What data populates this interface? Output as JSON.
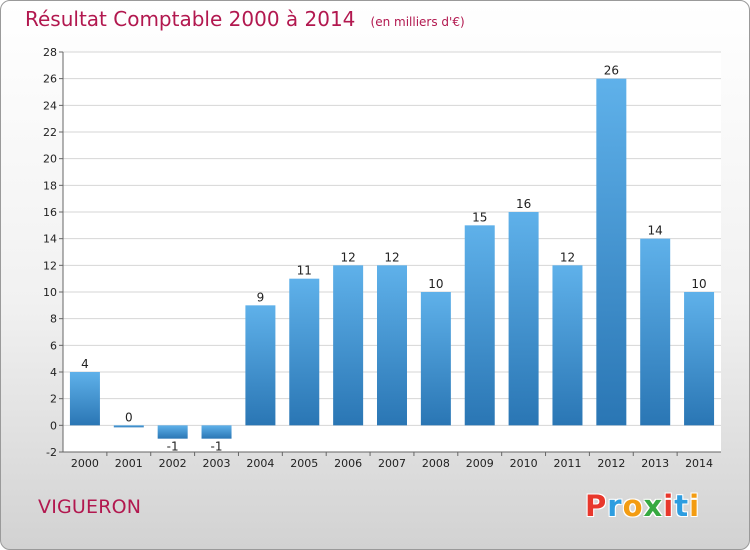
{
  "header": {
    "title": "Résultat Comptable 2000 à 2014",
    "subtitle": "(en milliers d'€)"
  },
  "footer": {
    "commune": "VIGUERON",
    "logo": {
      "text": "Proxiti",
      "letter_colors": [
        "#e8372c",
        "#2d9de0",
        "#f39c12",
        "#36a940",
        "#e8372c",
        "#2d9de0",
        "#f39c12"
      ]
    }
  },
  "chart_data": {
    "type": "bar",
    "categories": [
      "2000",
      "2001",
      "2002",
      "2003",
      "2004",
      "2005",
      "2006",
      "2007",
      "2008",
      "2009",
      "2010",
      "2011",
      "2012",
      "2013",
      "2014"
    ],
    "values": [
      4,
      0,
      -1,
      -1,
      9,
      11,
      12,
      12,
      10,
      15,
      16,
      12,
      26,
      14,
      10
    ],
    "data_labels": [
      "4",
      "0",
      "-1",
      "-1",
      "9",
      "11",
      "12",
      "12",
      "10",
      "15",
      "16",
      "12",
      "26",
      "14",
      "10"
    ],
    "ylim": [
      -2,
      28
    ],
    "ytick_step": 2,
    "yticks": [
      "-2",
      "0",
      "2",
      "4",
      "6",
      "8",
      "10",
      "12",
      "14",
      "16",
      "18",
      "20",
      "22",
      "24",
      "26",
      "28"
    ],
    "grid": true,
    "colors": {
      "bar_top": "#5fb1ea",
      "bar_bottom": "#2a76b4",
      "grid": "#d6d6d6",
      "axis": "#666666",
      "plot_bg": "#ffffff"
    }
  }
}
